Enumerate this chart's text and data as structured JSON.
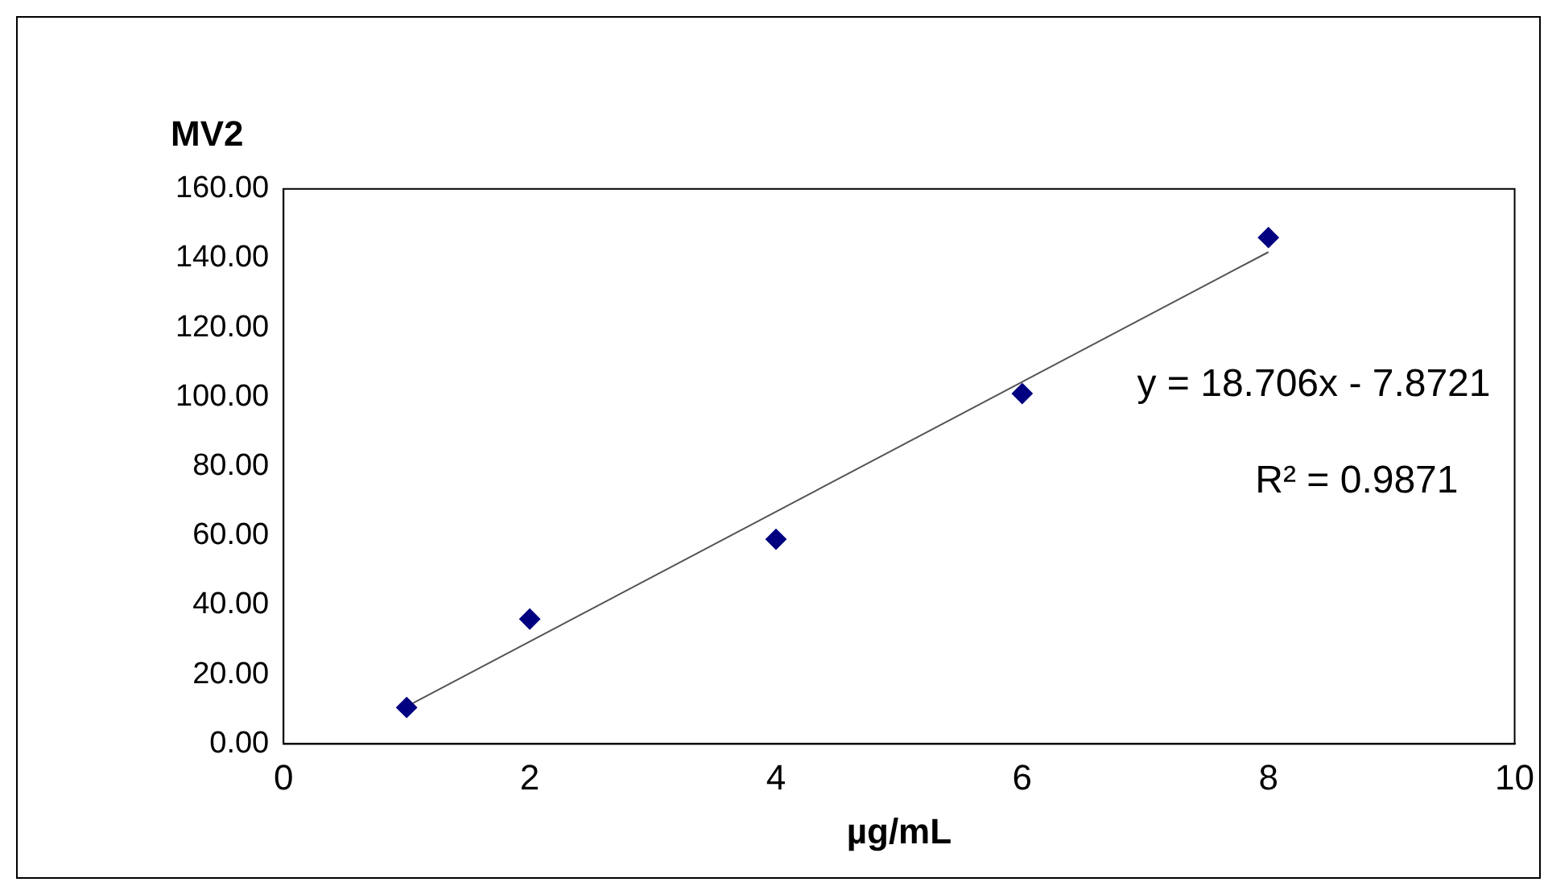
{
  "chart_data": {
    "type": "scatter",
    "title": "MV2",
    "xlabel": "µg/mL",
    "x": [
      1,
      2,
      4,
      6,
      8
    ],
    "series": [
      {
        "color": "#000080",
        "values": [
          10.5,
          36,
          59,
          101,
          146
        ],
        "marker": "diamond"
      },
      {
        "type": "line",
        "color": "#555555",
        "x": [
          1,
          8
        ],
        "values": [
          10.8,
          141.8
        ],
        "marker": "none"
      }
    ],
    "xlim": [
      0,
      10
    ],
    "xticks": [
      0,
      2,
      4,
      6,
      8,
      10
    ],
    "ylim": [
      0,
      160
    ],
    "yticks": [
      {
        "value": 0,
        "label": "0.00"
      },
      {
        "value": 20,
        "label": "20.00"
      },
      {
        "value": 40,
        "label": "40.00"
      },
      {
        "value": 60,
        "label": "60.00"
      },
      {
        "value": 80,
        "label": "80.00"
      },
      {
        "value": 100,
        "label": "100.00"
      },
      {
        "value": 120,
        "label": "120.00"
      },
      {
        "value": 140,
        "label": "140.00"
      },
      {
        "value": 160,
        "label": "160.00"
      }
    ],
    "annotations": [
      "y = 18.706x - 7.8721",
      "R² = 0.9871"
    ],
    "grid": false,
    "legend": false
  }
}
